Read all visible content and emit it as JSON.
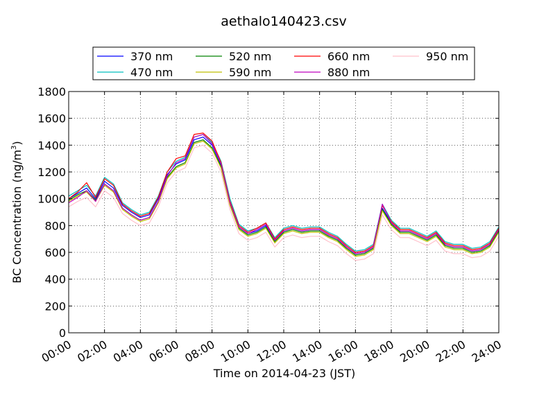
{
  "chart_data": {
    "type": "line",
    "title": "aethalo140423.csv",
    "xlabel": "Time on 2014-04-23 (JST)",
    "ylabel": "BC Concentration (ng/m",
    "ylabel_superscript": "3",
    "ylabel_suffix": ")",
    "xlim": [
      "00:00",
      "24:00"
    ],
    "ylim": [
      0,
      1800
    ],
    "x_ticks": [
      "00:00",
      "02:00",
      "04:00",
      "06:00",
      "08:00",
      "10:00",
      "12:00",
      "14:00",
      "16:00",
      "18:00",
      "20:00",
      "22:00",
      "24:00"
    ],
    "y_ticks": [
      "0",
      "200",
      "400",
      "600",
      "800",
      "1000",
      "1200",
      "1400",
      "1600",
      "1800"
    ],
    "grid": true,
    "legend_position": "top, above plot",
    "x": [
      "00:00",
      "00:30",
      "01:00",
      "01:30",
      "02:00",
      "02:30",
      "03:00",
      "03:30",
      "04:00",
      "04:30",
      "05:00",
      "05:30",
      "06:00",
      "06:30",
      "07:00",
      "07:30",
      "08:00",
      "08:30",
      "09:00",
      "09:30",
      "10:00",
      "10:30",
      "11:00",
      "11:30",
      "12:00",
      "12:30",
      "13:00",
      "13:30",
      "14:00",
      "14:30",
      "15:00",
      "15:30",
      "16:00",
      "16:30",
      "17:00",
      "17:30",
      "18:00",
      "18:30",
      "19:00",
      "19:30",
      "20:00",
      "20:30",
      "21:00",
      "21:30",
      "22:00",
      "22:30",
      "23:00",
      "23:30",
      "24:00"
    ],
    "series": [
      {
        "name": "370 nm",
        "color": "#0000ff",
        "values": [
          1000,
          1040,
          1080,
          1000,
          1130,
          1080,
          950,
          900,
          860,
          880,
          1000,
          1180,
          1260,
          1290,
          1440,
          1460,
          1400,
          1250,
          970,
          790,
          740,
          760,
          800,
          690,
          760,
          780,
          760,
          770,
          770,
          730,
          700,
          640,
          590,
          600,
          640,
          930,
          820,
          760,
          760,
          730,
          700,
          740,
          660,
          640,
          640,
          610,
          620,
          660,
          770
        ]
      },
      {
        "name": "470 nm",
        "color": "#00bfbf",
        "values": [
          1020,
          1060,
          1100,
          1020,
          1160,
          1110,
          970,
          920,
          880,
          900,
          1020,
          1200,
          1280,
          1310,
          1460,
          1480,
          1420,
          1280,
          1000,
          810,
          760,
          780,
          820,
          710,
          780,
          800,
          780,
          790,
          790,
          750,
          720,
          660,
          610,
          620,
          660,
          960,
          840,
          780,
          780,
          750,
          720,
          760,
          680,
          660,
          660,
          630,
          640,
          680,
          790
        ]
      },
      {
        "name": "520 nm",
        "color": "#008000",
        "values": [
          990,
          1030,
          1060,
          990,
          1110,
          1060,
          930,
          880,
          840,
          860,
          980,
          1160,
          1240,
          1270,
          1420,
          1440,
          1380,
          1240,
          960,
          780,
          730,
          750,
          790,
          680,
          750,
          770,
          750,
          760,
          760,
          720,
          690,
          630,
          580,
          590,
          630,
          920,
          810,
          750,
          750,
          720,
          690,
          730,
          650,
          630,
          630,
          600,
          610,
          650,
          760
        ]
      },
      {
        "name": "590 nm",
        "color": "#bfbf00",
        "values": [
          980,
          1020,
          1050,
          980,
          1100,
          1050,
          920,
          870,
          830,
          850,
          970,
          1150,
          1230,
          1260,
          1410,
          1430,
          1370,
          1230,
          950,
          770,
          720,
          740,
          780,
          670,
          740,
          760,
          740,
          750,
          750,
          710,
          680,
          620,
          570,
          580,
          620,
          910,
          800,
          740,
          740,
          710,
          680,
          720,
          640,
          620,
          620,
          590,
          600,
          640,
          750
        ]
      },
      {
        "name": "660 nm",
        "color": "#ff0000",
        "values": [
          1000,
          1050,
          1120,
          1010,
          1150,
          1100,
          960,
          910,
          870,
          890,
          1010,
          1200,
          1300,
          1320,
          1480,
          1490,
          1430,
          1270,
          980,
          800,
          750,
          780,
          820,
          700,
          770,
          790,
          770,
          780,
          780,
          740,
          710,
          650,
          600,
          610,
          650,
          950,
          830,
          770,
          770,
          740,
          710,
          750,
          670,
          650,
          650,
          620,
          630,
          670,
          780
        ]
      },
      {
        "name": "880 nm",
        "color": "#bf00bf",
        "values": [
          970,
          1010,
          1060,
          980,
          1110,
          1060,
          930,
          880,
          840,
          860,
          980,
          1170,
          1270,
          1300,
          1460,
          1480,
          1410,
          1260,
          970,
          790,
          740,
          770,
          810,
          690,
          760,
          780,
          760,
          770,
          770,
          730,
          700,
          640,
          590,
          600,
          640,
          960,
          820,
          760,
          760,
          730,
          700,
          740,
          660,
          640,
          640,
          610,
          620,
          660,
          770
        ]
      },
      {
        "name": "950 nm",
        "color": "#ffc0cb",
        "values": [
          940,
          980,
          1010,
          940,
          1060,
          1010,
          890,
          840,
          800,
          820,
          940,
          1120,
          1200,
          1230,
          1380,
          1400,
          1340,
          1200,
          920,
          740,
          690,
          710,
          750,
          640,
          710,
          730,
          710,
          720,
          720,
          680,
          650,
          590,
          540,
          550,
          590,
          880,
          770,
          710,
          710,
          680,
          650,
          690,
          610,
          590,
          590,
          560,
          570,
          610,
          720
        ]
      }
    ]
  }
}
